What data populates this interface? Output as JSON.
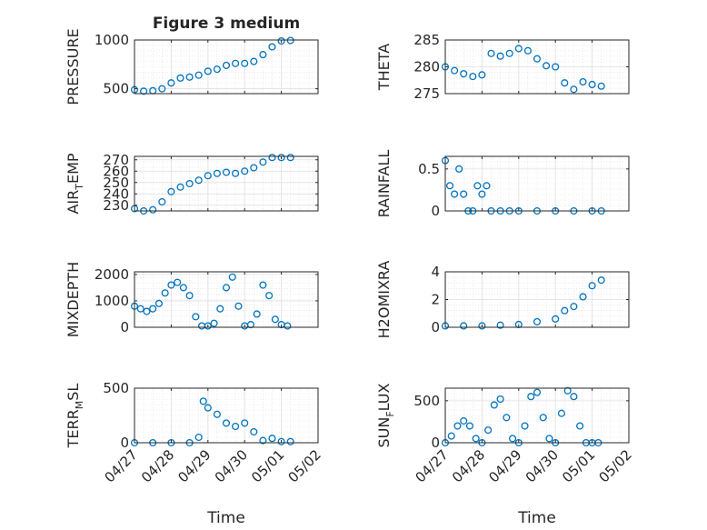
{
  "figure": {
    "title": "Figure 3 medium",
    "xlabel": "Time",
    "date_ticks": [
      "04/27",
      "04/28",
      "04/29",
      "04/30",
      "05/01",
      "05/02"
    ],
    "colors": {
      "marker": "#0072BD",
      "axis": "#262626",
      "grid": "#dfdfdf"
    }
  },
  "chart_data": [
    {
      "type": "scatter",
      "ylabel": "PRESSURE",
      "title": "Figure 3 medium",
      "xlim": [
        "04/27",
        "05/02"
      ],
      "ylim": [
        450,
        1000
      ],
      "yticks": [
        500,
        1000
      ],
      "series": [
        {
          "x": [
            "04/27 00:00",
            "04/27 06:00",
            "04/27 12:00",
            "04/27 18:00",
            "04/28 00:00",
            "04/28 06:00",
            "04/28 12:00",
            "04/28 18:00",
            "04/29 00:00",
            "04/29 06:00",
            "04/29 12:00",
            "04/29 18:00",
            "04/30 00:00",
            "04/30 06:00",
            "04/30 12:00",
            "04/30 18:00",
            "05/01 00:00",
            "05/01 06:00"
          ],
          "y": [
            490,
            475,
            480,
            500,
            560,
            610,
            620,
            640,
            680,
            700,
            740,
            760,
            760,
            780,
            850,
            930,
            990,
            995
          ]
        }
      ]
    },
    {
      "type": "scatter",
      "ylabel": "THETA",
      "xlim": [
        "04/27",
        "05/02"
      ],
      "ylim": [
        275,
        285
      ],
      "yticks": [
        275,
        280,
        285
      ],
      "series": [
        {
          "x": [
            "04/27 00:00",
            "04/27 06:00",
            "04/27 12:00",
            "04/27 18:00",
            "04/28 00:00",
            "04/28 06:00",
            "04/28 12:00",
            "04/28 18:00",
            "04/29 00:00",
            "04/29 06:00",
            "04/29 12:00",
            "04/29 18:00",
            "04/30 00:00",
            "04/30 06:00",
            "04/30 12:00",
            "04/30 18:00",
            "05/01 00:00",
            "05/01 06:00"
          ],
          "y": [
            280,
            279.3,
            278.7,
            278.2,
            278.5,
            282.5,
            282,
            282.5,
            283.4,
            283,
            281.5,
            280.2,
            280,
            277,
            275.8,
            277.2,
            276.7,
            276.4
          ]
        }
      ]
    },
    {
      "type": "scatter",
      "ylabel_main": "AIR",
      "ylabel_sub": "T",
      "ylabel_rest": "EMP",
      "xlim": [
        "04/27",
        "05/02"
      ],
      "ylim": [
        225,
        273
      ],
      "yticks": [
        230,
        240,
        250,
        260,
        270
      ],
      "series": [
        {
          "x": [
            "04/27 00:00",
            "04/27 06:00",
            "04/27 12:00",
            "04/27 18:00",
            "04/28 00:00",
            "04/28 06:00",
            "04/28 12:00",
            "04/28 18:00",
            "04/29 00:00",
            "04/29 06:00",
            "04/29 12:00",
            "04/29 18:00",
            "04/30 00:00",
            "04/30 06:00",
            "04/30 12:00",
            "04/30 18:00",
            "05/01 00:00",
            "05/01 06:00"
          ],
          "y": [
            227,
            225,
            226,
            233,
            242,
            246,
            249,
            252,
            256,
            258,
            259,
            258,
            260,
            263,
            268,
            272,
            272,
            272
          ]
        }
      ]
    },
    {
      "type": "scatter",
      "ylabel": "RAINFALL",
      "xlim": [
        "04/27",
        "05/02"
      ],
      "ylim": [
        0,
        0.65
      ],
      "yticks": [
        0,
        0.5
      ],
      "series": [
        {
          "x": [
            "04/27 00:00",
            "04/27 03:00",
            "04/27 06:00",
            "04/27 09:00",
            "04/27 12:00",
            "04/27 15:00",
            "04/27 18:00",
            "04/27 21:00",
            "04/28 00:00",
            "04/28 03:00",
            "04/28 06:00",
            "04/28 12:00",
            "04/28 18:00",
            "04/29 00:00",
            "04/29 12:00",
            "04/30 00:00",
            "04/30 12:00",
            "05/01 00:00",
            "05/01 06:00"
          ],
          "y": [
            0.6,
            0.3,
            0.2,
            0.5,
            0.2,
            0,
            0,
            0.3,
            0.2,
            0.3,
            0,
            0,
            0,
            0,
            0,
            0,
            0,
            0,
            0
          ]
        }
      ]
    },
    {
      "type": "scatter",
      "ylabel": "MIXDEPTH",
      "xlim": [
        "04/27",
        "05/02"
      ],
      "ylim": [
        0,
        2100
      ],
      "yticks": [
        0,
        1000,
        2000
      ],
      "series": [
        {
          "x": [
            "04/27 00:00",
            "04/27 04:00",
            "04/27 08:00",
            "04/27 12:00",
            "04/27 16:00",
            "04/27 20:00",
            "04/28 00:00",
            "04/28 04:00",
            "04/28 08:00",
            "04/28 12:00",
            "04/28 16:00",
            "04/28 20:00",
            "04/29 00:00",
            "04/29 04:00",
            "04/29 08:00",
            "04/29 12:00",
            "04/29 16:00",
            "04/29 20:00",
            "04/30 00:00",
            "04/30 04:00",
            "04/30 08:00",
            "04/30 12:00",
            "04/30 16:00",
            "04/30 20:00",
            "05/01 00:00",
            "05/01 04:00"
          ],
          "y": [
            800,
            700,
            600,
            700,
            900,
            1300,
            1600,
            1700,
            1500,
            1200,
            400,
            50,
            50,
            150,
            700,
            1500,
            1900,
            800,
            50,
            100,
            500,
            1600,
            1200,
            300,
            100,
            50
          ]
        }
      ]
    },
    {
      "type": "scatter",
      "ylabel": "H2OMIXRA",
      "xlim": [
        "04/27",
        "05/02"
      ],
      "ylim": [
        0,
        4
      ],
      "yticks": [
        0,
        2,
        4
      ],
      "series": [
        {
          "x": [
            "04/27 00:00",
            "04/27 12:00",
            "04/28 00:00",
            "04/28 12:00",
            "04/29 00:00",
            "04/29 12:00",
            "04/30 00:00",
            "04/30 06:00",
            "04/30 12:00",
            "04/30 18:00",
            "05/01 00:00",
            "05/01 06:00"
          ],
          "y": [
            0.1,
            0.1,
            0.1,
            0.15,
            0.2,
            0.4,
            0.6,
            1.2,
            1.5,
            2.2,
            3.0,
            3.4
          ]
        }
      ]
    },
    {
      "type": "scatter",
      "ylabel_main": "TERR",
      "ylabel_sub": "M",
      "ylabel_rest": "SL",
      "xlim": [
        "04/27",
        "05/02"
      ],
      "ylim": [
        0,
        500
      ],
      "yticks": [
        0,
        500
      ],
      "series": [
        {
          "x": [
            "04/27 00:00",
            "04/27 12:00",
            "04/28 00:00",
            "04/28 12:00",
            "04/28 18:00",
            "04/28 21:00",
            "04/29 00:00",
            "04/29 06:00",
            "04/29 12:00",
            "04/29 18:00",
            "04/30 00:00",
            "04/30 06:00",
            "04/30 12:00",
            "04/30 18:00",
            "05/01 00:00",
            "05/01 06:00"
          ],
          "y": [
            0,
            0,
            0,
            0,
            50,
            380,
            320,
            260,
            180,
            150,
            180,
            100,
            20,
            40,
            10,
            10
          ]
        }
      ]
    },
    {
      "type": "scatter",
      "ylabel_main": "SUN",
      "ylabel_sub": "F",
      "ylabel_rest": "LUX",
      "xlim": [
        "04/27",
        "05/02"
      ],
      "ylim": [
        0,
        650
      ],
      "yticks": [
        0,
        500
      ],
      "series": [
        {
          "x": [
            "04/27 00:00",
            "04/27 04:00",
            "04/27 08:00",
            "04/27 12:00",
            "04/27 16:00",
            "04/27 20:00",
            "04/28 00:00",
            "04/28 04:00",
            "04/28 08:00",
            "04/28 12:00",
            "04/28 16:00",
            "04/28 20:00",
            "04/29 00:00",
            "04/29 04:00",
            "04/29 08:00",
            "04/29 12:00",
            "04/29 16:00",
            "04/29 20:00",
            "04/30 00:00",
            "04/30 04:00",
            "04/30 08:00",
            "04/30 12:00",
            "04/30 16:00",
            "04/30 20:00",
            "05/01 00:00",
            "05/01 04:00"
          ],
          "y": [
            0,
            80,
            200,
            260,
            200,
            50,
            0,
            150,
            450,
            520,
            300,
            50,
            0,
            200,
            550,
            600,
            300,
            50,
            0,
            350,
            620,
            550,
            200,
            0,
            0,
            0
          ]
        }
      ]
    }
  ]
}
